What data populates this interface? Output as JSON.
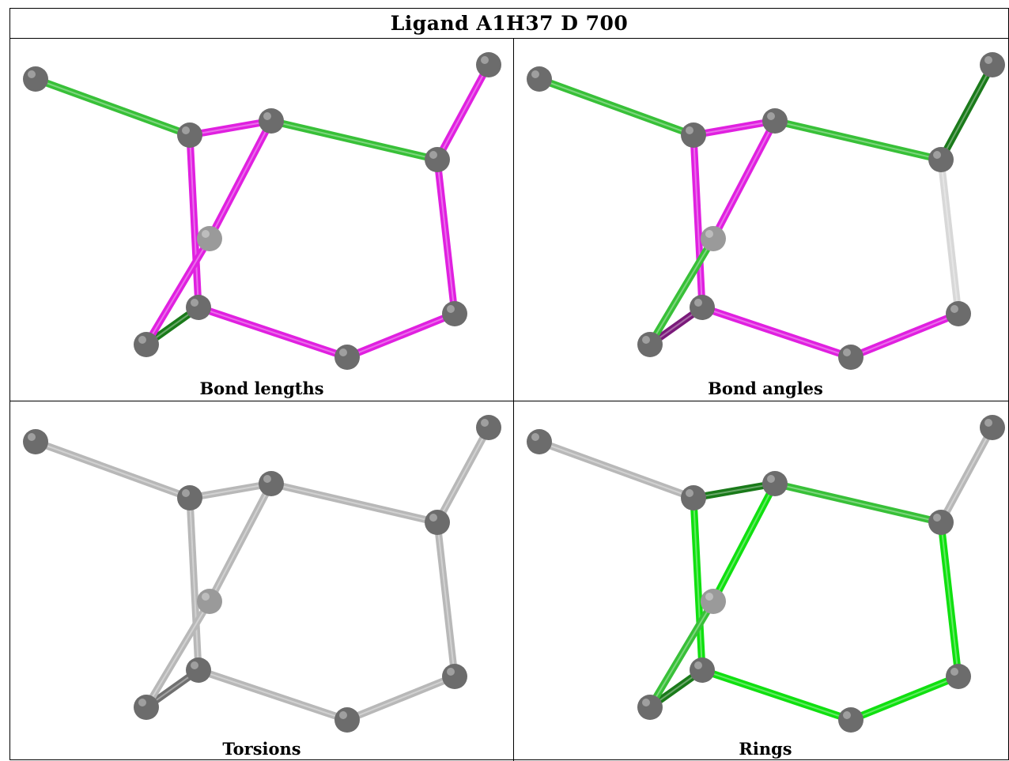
{
  "title": "Ligand A1H37 D 700",
  "panels": [
    {
      "label": "Bond lengths"
    },
    {
      "label": "Bond angles"
    },
    {
      "label": "Torsions"
    },
    {
      "label": "Rings"
    }
  ],
  "colors": {
    "atom": "#6e6e6e",
    "magenta": "#e020e0",
    "green": "#30c030",
    "bright_green": "#10e010",
    "dark_green": "#1a7a1a",
    "gray": "#b4b4b4",
    "light_gray": "#d0d0d0"
  },
  "bond_colors": {
    "bond_lengths": [
      "green",
      "magenta",
      "green",
      "magenta",
      "magenta",
      "magenta",
      "magenta",
      "magenta",
      "magenta",
      "dark_green",
      "magenta"
    ],
    "bond_angles": [
      "green",
      "magenta",
      "green",
      "dark_green",
      "light_gray",
      "magenta",
      "magenta",
      "magenta",
      "magenta",
      "dark_magenta",
      "green"
    ],
    "torsions": [
      "gray",
      "gray",
      "gray",
      "gray",
      "gray",
      "gray",
      "gray",
      "gray",
      "gray",
      "dark_gray",
      "gray"
    ],
    "rings": [
      "gray",
      "dark_green",
      "green",
      "gray",
      "bright_green",
      "bright_green",
      "bright_green",
      "bright_green",
      "bright_green",
      "dark_green",
      "green"
    ]
  }
}
